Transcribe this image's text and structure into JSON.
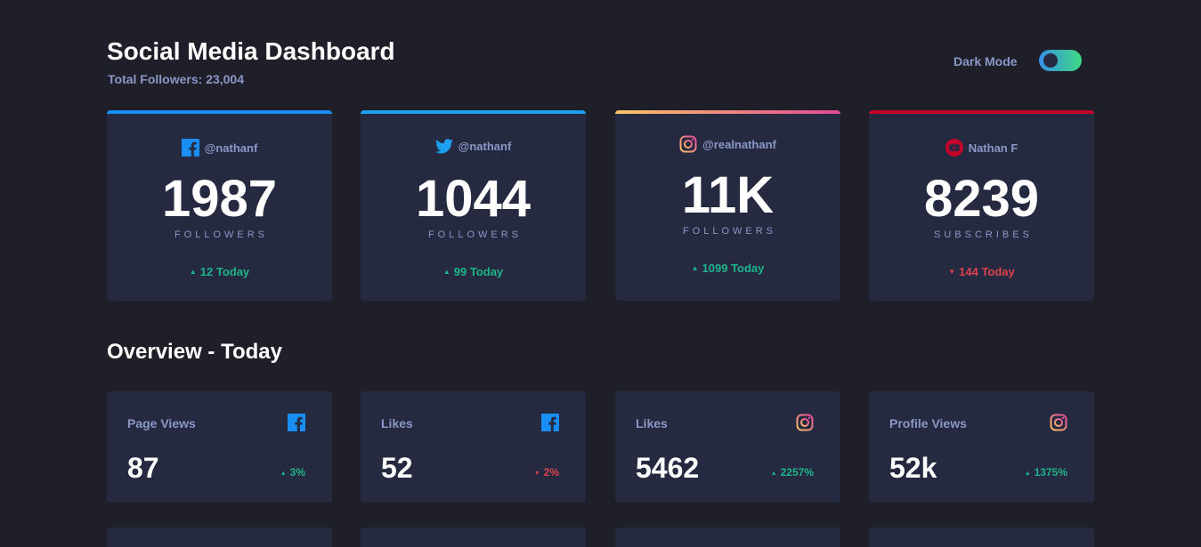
{
  "header": {
    "title": "Social Media Dashboard",
    "total_followers": "Total Followers: 23,004",
    "dark_mode_label": "Dark Mode",
    "dark_mode_on": true
  },
  "colors": {
    "background": "#1e1f29",
    "card": "#252a41",
    "muted_text": "#8b97c6",
    "up": "#1db489",
    "down": "#dc414c",
    "facebook": "#198ff5",
    "twitter": "#1ca0f2",
    "youtube": "#c4032a"
  },
  "cards": [
    {
      "icon": "facebook-icon",
      "handle": "@nathanf",
      "count": "1987",
      "unit": "FOLLOWERS",
      "today": "12 Today",
      "trend": "up"
    },
    {
      "icon": "twitter-icon",
      "handle": "@nathanf",
      "count": "1044",
      "unit": "FOLLOWERS",
      "today": "99 Today",
      "trend": "up"
    },
    {
      "icon": "instagram-icon",
      "handle": "@realnathanf",
      "count": "11K",
      "unit": "FOLLOWERS",
      "today": "1099 Today",
      "trend": "up"
    },
    {
      "icon": "youtube-icon",
      "handle": "Nathan F",
      "count": "8239",
      "unit": "SUBSCRIBES",
      "today": "144 Today",
      "trend": "down"
    }
  ],
  "overview": {
    "title": "Overview - Today",
    "items": [
      {
        "label": "Page Views",
        "icon": "facebook-icon",
        "value": "87",
        "percent": "3%",
        "trend": "up"
      },
      {
        "label": "Likes",
        "icon": "facebook-icon",
        "value": "52",
        "percent": "2%",
        "trend": "down"
      },
      {
        "label": "Likes",
        "icon": "instagram-icon",
        "value": "5462",
        "percent": "2257%",
        "trend": "up"
      },
      {
        "label": "Profile Views",
        "icon": "instagram-icon",
        "value": "52k",
        "percent": "1375%",
        "trend": "up"
      }
    ]
  }
}
